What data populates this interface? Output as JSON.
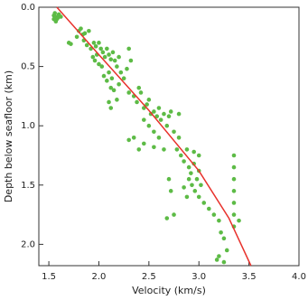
{
  "chart_data": {
    "type": "scatter",
    "xlabel": "Velocity (km/s)",
    "ylabel": "Depth below seafloor (km)",
    "xlim": [
      1.4,
      4.0
    ],
    "ylim": [
      2.18,
      0
    ],
    "xticks": [
      1.5,
      {
        "value": 2,
        "label": "2.0"
      },
      2.5,
      {
        "value": 3,
        "label": "3.0"
      },
      3.5,
      {
        "value": 4,
        "label": "4.0"
      }
    ],
    "yticks": [
      {
        "value": 0,
        "label": "0.0"
      },
      0.5,
      {
        "value": 1,
        "label": "1.0"
      },
      1.5,
      {
        "value": 2,
        "label": "2.0"
      }
    ],
    "series": [
      {
        "kind": "points",
        "color": "#5dbb46",
        "x": [
          1.55,
          1.57,
          1.56,
          1.58,
          1.6,
          1.59,
          1.57,
          1.62,
          1.55,
          1.7,
          1.72,
          1.8,
          1.82,
          1.84,
          1.78,
          1.86,
          1.9,
          1.85,
          1.88,
          1.92,
          1.95,
          1.97,
          2.0,
          2.02,
          1.98,
          1.94,
          2.04,
          2.06,
          2.08,
          2.1,
          2.12,
          2.0,
          2.03,
          1.96,
          2.14,
          2.16,
          2.18,
          2.2,
          2.22,
          2.1,
          2.13,
          2.08,
          2.05,
          2.15,
          2.12,
          2.2,
          2.25,
          2.28,
          2.3,
          2.18,
          2.1,
          2.12,
          2.35,
          2.38,
          2.4,
          2.42,
          2.45,
          2.48,
          2.5,
          2.52,
          2.55,
          2.58,
          2.45,
          2.5,
          2.55,
          2.6,
          2.62,
          2.65,
          2.68,
          2.7,
          2.72,
          2.4,
          2.45,
          2.3,
          2.35,
          2.6,
          2.65,
          2.55,
          2.75,
          2.78,
          2.8,
          2.82,
          2.85,
          2.88,
          2.9,
          2.92,
          2.95,
          2.98,
          3.0,
          2.9,
          2.93,
          2.96,
          2.85,
          2.88,
          3.0,
          3.02,
          2.7,
          2.72,
          2.75,
          2.68,
          3.05,
          3.1,
          3.15,
          3.2,
          3.22,
          3.25,
          3.28,
          3.2,
          3.18,
          3.25,
          3.35,
          3.35,
          3.35,
          3.35,
          3.35,
          3.35,
          3.35,
          3.4,
          2.95,
          3.0,
          2.8,
          2.32,
          2.3
        ],
        "y": [
          0.07,
          0.08,
          0.05,
          0.1,
          0.06,
          0.09,
          0.12,
          0.08,
          0.1,
          0.3,
          0.31,
          0.2,
          0.18,
          0.23,
          0.25,
          0.22,
          0.2,
          0.28,
          0.32,
          0.35,
          0.3,
          0.33,
          0.3,
          0.35,
          0.4,
          0.42,
          0.38,
          0.42,
          0.35,
          0.4,
          0.44,
          0.48,
          0.5,
          0.45,
          0.38,
          0.45,
          0.5,
          0.42,
          0.55,
          0.55,
          0.6,
          0.62,
          0.58,
          0.7,
          0.68,
          0.65,
          0.6,
          0.52,
          0.72,
          0.78,
          0.8,
          0.85,
          0.75,
          0.8,
          0.68,
          0.72,
          0.85,
          0.82,
          0.78,
          0.9,
          0.88,
          0.92,
          0.95,
          1.0,
          1.05,
          0.85,
          0.95,
          0.9,
          1.0,
          0.92,
          0.88,
          1.2,
          1.15,
          1.12,
          1.1,
          1.1,
          1.2,
          1.18,
          1.05,
          1.2,
          1.1,
          1.25,
          1.3,
          1.2,
          1.35,
          1.4,
          1.32,
          1.45,
          1.38,
          1.45,
          1.5,
          1.55,
          1.52,
          1.6,
          1.6,
          1.5,
          1.45,
          1.55,
          1.75,
          1.78,
          1.65,
          1.7,
          1.75,
          1.8,
          1.9,
          1.95,
          2.05,
          2.1,
          2.13,
          2.15,
          1.25,
          1.35,
          1.45,
          1.55,
          1.65,
          1.75,
          1.85,
          1.8,
          1.22,
          1.25,
          0.9,
          0.45,
          0.35
        ]
      },
      {
        "kind": "line",
        "color": "#e8322c",
        "x": [
          1.58,
          2.0,
          2.5,
          3.0,
          3.3,
          3.52
        ],
        "y": [
          0,
          0.4,
          0.87,
          1.38,
          1.78,
          2.18
        ]
      }
    ]
  }
}
